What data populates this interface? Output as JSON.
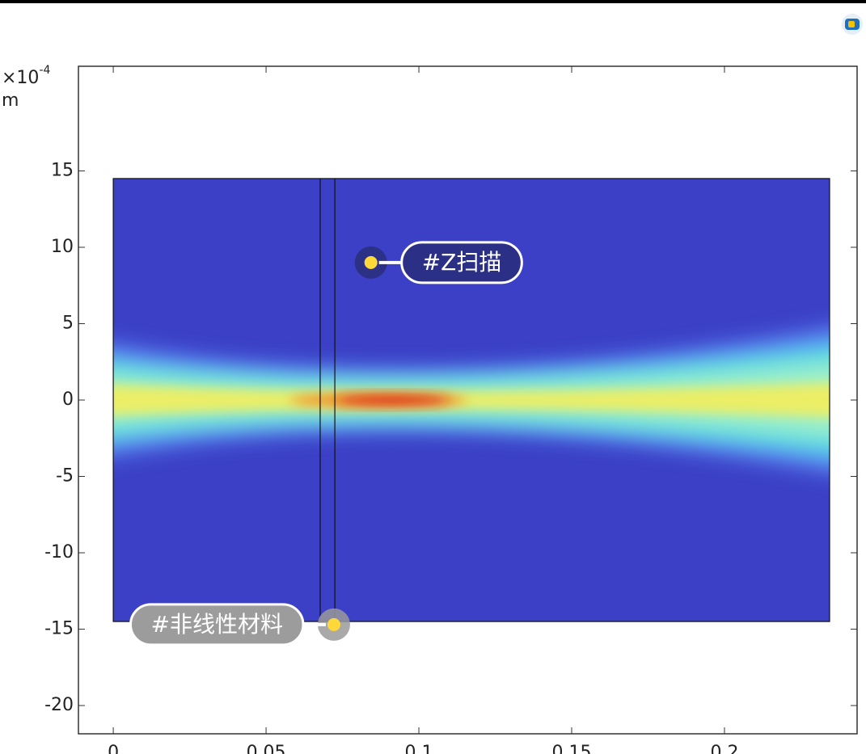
{
  "chart_data": {
    "type": "field",
    "y_multiplier": "×10",
    "y_exponent": "-4",
    "y_unit": "m",
    "xlim": [
      -0.0114,
      0.2434
    ],
    "ylim": [
      -21.85,
      21.85
    ],
    "xticks": [
      0,
      0.05,
      0.1,
      0.15,
      0.2
    ],
    "yticks": [
      15,
      10,
      5,
      0,
      -5,
      -10,
      -15,
      -20
    ],
    "domain_x": [
      0,
      0.2344
    ],
    "domain_y": [
      -14.5,
      14.5
    ],
    "material_x": [
      0.0677,
      0.0725
    ],
    "annotations": [
      {
        "text": "#Z扫描",
        "x": 0.0843,
        "y": 9
      },
      {
        "text": "#非线性材料",
        "x": 0.0722,
        "y": -14.7
      }
    ]
  }
}
